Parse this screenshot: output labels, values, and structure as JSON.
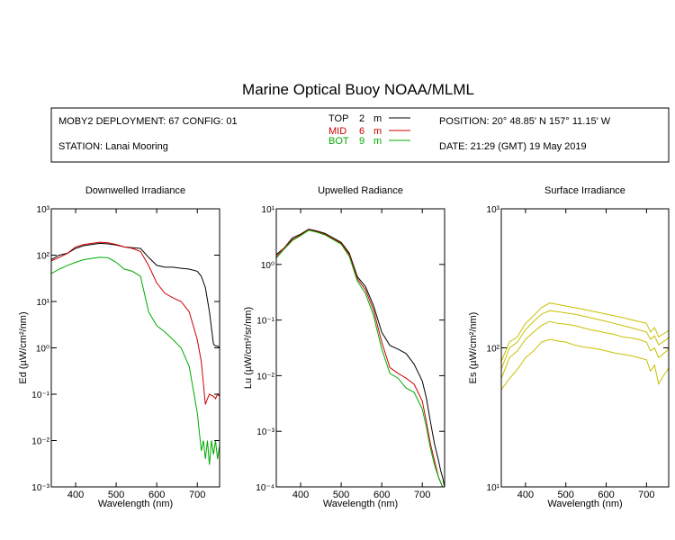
{
  "title": "Marine Optical Buoy NOAA/MLML",
  "header": {
    "deployment": "MOBY2 DEPLOYMENT: 67 CONFIG: 01",
    "station": "STATION: Lanai Mooring",
    "position": "POSITION: 20° 48.85' N   157° 11.15' W",
    "date": "DATE: 21:29 (GMT) 19 May 2019",
    "legend": [
      {
        "label": "TOP",
        "depth": "2",
        "unit": "m",
        "color": "#000000"
      },
      {
        "label": "MID",
        "depth": "6",
        "unit": "m",
        "color": "#cc0000"
      },
      {
        "label": "BOT",
        "depth": "9",
        "unit": "m",
        "color": "#00aa00"
      }
    ]
  },
  "chart_data": [
    {
      "type": "line",
      "title": "Downwelled Irradiance",
      "xlabel": "Wavelength (nm)",
      "ylabel": "Ed  (µW/cm²/nm)",
      "xlim": [
        340,
        755
      ],
      "ylim": [
        0.001,
        1000
      ],
      "yscale": "log",
      "xticks": [
        "400",
        "500",
        "600",
        "700"
      ],
      "yticks": [
        "10⁻³",
        "10⁻²",
        "10⁻¹",
        "10⁰",
        "10¹",
        "10²",
        "10³"
      ],
      "series": [
        {
          "name": "TOP",
          "color": "#000000",
          "x": [
            340,
            360,
            380,
            400,
            420,
            440,
            460,
            480,
            500,
            520,
            540,
            560,
            580,
            600,
            620,
            640,
            660,
            680,
            700,
            710,
            720,
            730,
            740,
            745,
            750,
            755
          ],
          "y": [
            80,
            100,
            110,
            140,
            160,
            170,
            180,
            175,
            165,
            150,
            145,
            140,
            90,
            60,
            55,
            55,
            52,
            50,
            45,
            35,
            20,
            6,
            1.2,
            1.1,
            1.1,
            1.0
          ]
        },
        {
          "name": "MID",
          "color": "#cc0000",
          "x": [
            340,
            360,
            380,
            400,
            420,
            440,
            460,
            480,
            500,
            520,
            540,
            560,
            580,
            600,
            620,
            640,
            660,
            680,
            700,
            710,
            720,
            725,
            730,
            740,
            745,
            750,
            755
          ],
          "y": [
            75,
            90,
            110,
            150,
            170,
            180,
            190,
            185,
            170,
            150,
            140,
            120,
            60,
            25,
            15,
            12,
            10,
            6,
            1.5,
            0.5,
            0.06,
            0.08,
            0.1,
            0.09,
            0.08,
            0.1,
            0.09
          ]
        },
        {
          "name": "BOT",
          "color": "#00aa00",
          "x": [
            340,
            360,
            380,
            400,
            420,
            440,
            460,
            480,
            500,
            520,
            540,
            560,
            580,
            600,
            620,
            640,
            660,
            680,
            700,
            710,
            715,
            720,
            725,
            730,
            735,
            740,
            745,
            750,
            755
          ],
          "y": [
            40,
            50,
            60,
            70,
            80,
            85,
            90,
            88,
            70,
            50,
            45,
            35,
            6,
            3,
            2.2,
            1.5,
            1,
            0.4,
            0.04,
            0.006,
            0.01,
            0.004,
            0.01,
            0.003,
            0.01,
            0.005,
            0.01,
            0.004,
            0.008
          ]
        }
      ]
    },
    {
      "type": "line",
      "title": "Upwelled Radiance",
      "xlabel": "Wavelength (nm)",
      "ylabel": "Lu  (µW/cm²/sr/nm)",
      "xlim": [
        340,
        755
      ],
      "ylim": [
        0.0001,
        10
      ],
      "yscale": "log",
      "xticks": [
        "400",
        "500",
        "600",
        "700"
      ],
      "yticks": [
        "10⁻⁴",
        "10⁻³",
        "10⁻²",
        "10⁻¹",
        "10⁰",
        "10¹"
      ],
      "series": [
        {
          "name": "TOP",
          "color": "#000000",
          "x": [
            340,
            360,
            380,
            400,
            420,
            440,
            460,
            480,
            500,
            520,
            540,
            560,
            580,
            600,
            620,
            640,
            660,
            680,
            700,
            710,
            720,
            730,
            740,
            745,
            750,
            755
          ],
          "y": [
            1.5,
            2,
            3,
            3.5,
            4.3,
            4.0,
            3.6,
            3.0,
            2.5,
            1.6,
            0.6,
            0.4,
            0.18,
            0.06,
            0.035,
            0.03,
            0.025,
            0.016,
            0.008,
            0.004,
            0.0015,
            0.0006,
            0.0003,
            0.0002,
            0.00015,
            0.0001
          ]
        },
        {
          "name": "MID",
          "color": "#cc0000",
          "x": [
            340,
            360,
            380,
            400,
            420,
            440,
            460,
            480,
            500,
            520,
            540,
            560,
            580,
            600,
            620,
            640,
            660,
            680,
            700,
            710,
            720,
            730,
            740,
            750,
            755
          ],
          "y": [
            1.4,
            2,
            2.8,
            3.4,
            4.2,
            3.9,
            3.5,
            2.9,
            2.4,
            1.5,
            0.55,
            0.35,
            0.15,
            0.04,
            0.014,
            0.011,
            0.009,
            0.007,
            0.0035,
            0.0015,
            0.0006,
            0.0003,
            0.00015,
            0.0001,
            0.0001
          ]
        },
        {
          "name": "BOT",
          "color": "#00aa00",
          "x": [
            340,
            360,
            380,
            400,
            420,
            440,
            460,
            480,
            500,
            520,
            540,
            560,
            580,
            600,
            620,
            640,
            660,
            680,
            700,
            710,
            720,
            730,
            740,
            750,
            755
          ],
          "y": [
            1.3,
            1.9,
            2.7,
            3.3,
            4.1,
            3.8,
            3.4,
            2.8,
            2.3,
            1.4,
            0.5,
            0.3,
            0.12,
            0.03,
            0.011,
            0.009,
            0.006,
            0.005,
            0.0025,
            0.0012,
            0.0005,
            0.00025,
            0.00015,
            0.0001,
            0.0001
          ]
        }
      ]
    },
    {
      "type": "line",
      "title": "Surface Irradiance",
      "xlabel": "Wavelength (nm)",
      "ylabel": "Es  (µW/cm²/nm)",
      "xlim": [
        340,
        755
      ],
      "ylim": [
        10,
        1000
      ],
      "yscale": "log",
      "xticks": [
        "400",
        "500",
        "600",
        "700"
      ],
      "yticks": [
        "10¹",
        "10²",
        "10³"
      ],
      "series": [
        {
          "color": "#c8c000",
          "x": [
            340,
            360,
            380,
            400,
            420,
            440,
            460,
            480,
            500,
            520,
            540,
            560,
            580,
            600,
            620,
            640,
            660,
            680,
            700,
            710,
            720,
            730,
            740,
            750,
            755
          ],
          "y": [
            80,
            110,
            120,
            150,
            170,
            195,
            210,
            205,
            200,
            195,
            190,
            185,
            180,
            175,
            170,
            165,
            160,
            155,
            150,
            130,
            140,
            120,
            125,
            130,
            135
          ]
        },
        {
          "color": "#c8c000",
          "x": [
            340,
            360,
            380,
            400,
            420,
            440,
            460,
            480,
            500,
            520,
            540,
            560,
            580,
            600,
            620,
            640,
            660,
            680,
            700,
            710,
            720,
            730,
            740,
            750,
            755
          ],
          "y": [
            70,
            100,
            110,
            135,
            155,
            175,
            185,
            182,
            178,
            175,
            170,
            165,
            160,
            155,
            150,
            145,
            140,
            135,
            130,
            115,
            122,
            105,
            110,
            115,
            120
          ]
        },
        {
          "color": "#c8c000",
          "x": [
            340,
            360,
            380,
            400,
            420,
            440,
            460,
            480,
            500,
            520,
            540,
            560,
            580,
            600,
            620,
            640,
            660,
            680,
            700,
            710,
            720,
            730,
            740,
            750,
            755
          ],
          "y": [
            60,
            85,
            95,
            115,
            130,
            145,
            155,
            150,
            148,
            145,
            140,
            135,
            132,
            128,
            125,
            120,
            118,
            115,
            110,
            95,
            100,
            85,
            90,
            95,
            100
          ]
        },
        {
          "color": "#c8c000",
          "x": [
            340,
            360,
            380,
            400,
            420,
            440,
            460,
            480,
            500,
            520,
            540,
            560,
            580,
            600,
            620,
            640,
            660,
            680,
            700,
            710,
            720,
            730,
            740,
            750,
            755
          ],
          "y": [
            50,
            60,
            70,
            85,
            95,
            110,
            115,
            112,
            110,
            105,
            102,
            100,
            98,
            95,
            92,
            90,
            88,
            85,
            82,
            68,
            75,
            55,
            62,
            68,
            72
          ]
        }
      ]
    }
  ]
}
